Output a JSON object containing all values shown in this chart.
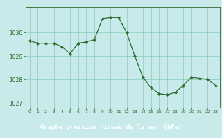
{
  "x": [
    0,
    1,
    2,
    3,
    4,
    5,
    6,
    7,
    8,
    9,
    10,
    11,
    12,
    13,
    14,
    15,
    16,
    17,
    18,
    19,
    20,
    21,
    22,
    23
  ],
  "y": [
    1029.65,
    1029.55,
    1029.55,
    1029.55,
    1029.4,
    1029.1,
    1029.55,
    1029.6,
    1029.7,
    1030.6,
    1030.65,
    1030.65,
    1030.0,
    1029.0,
    1028.1,
    1027.65,
    1027.4,
    1027.35,
    1027.45,
    1027.75,
    1028.1,
    1028.05,
    1028.0,
    1027.75
  ],
  "line_color": "#2d6a2d",
  "marker": "D",
  "marker_size": 2.2,
  "bg_color": "#c8eaea",
  "grid_color": "#88ccbb",
  "xlabel": "Graphe pression niveau de la mer (hPa)",
  "xlabel_color": "#2d6a2d",
  "xlabel_bg": "#3a7a3a",
  "tick_color": "#2d6a2d",
  "ylim": [
    1026.8,
    1031.1
  ],
  "yticks": [
    1027,
    1028,
    1029,
    1030
  ],
  "xticks": [
    0,
    1,
    2,
    3,
    4,
    5,
    6,
    7,
    8,
    9,
    10,
    11,
    12,
    13,
    14,
    15,
    16,
    17,
    18,
    19,
    20,
    21,
    22,
    23
  ],
  "figsize": [
    3.2,
    2.0
  ],
  "dpi": 100
}
